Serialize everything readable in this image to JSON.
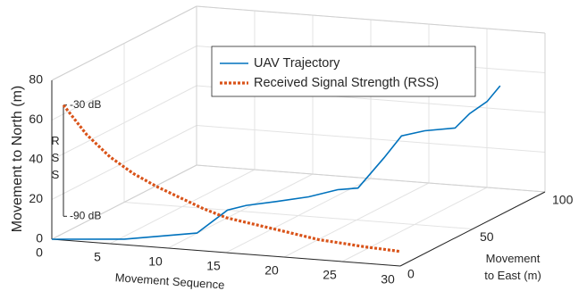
{
  "chart_data": {
    "type": "line3d",
    "xlabel": "Movement Sequence",
    "ylabel": [
      "Movement",
      "to East (m)"
    ],
    "zlabel": "Movement to North (m)",
    "xlim": [
      0,
      30
    ],
    "ylim": [
      0,
      100
    ],
    "zlim": [
      0,
      80
    ],
    "xticks": [
      0,
      5,
      10,
      15,
      20,
      25,
      30
    ],
    "yticks": [
      0,
      50,
      100
    ],
    "zticks": [
      0,
      20,
      40,
      60,
      80
    ],
    "grid": true,
    "legend_location": "north",
    "series": [
      {
        "name": "UAV Trajectory",
        "color": "#0072bd",
        "style": "solid",
        "x": [
          0,
          6,
          12,
          15,
          16,
          18,
          20,
          22,
          23,
          24,
          25,
          26,
          27,
          28,
          29,
          30
        ],
        "y": [
          0,
          2,
          4,
          1,
          6,
          11,
          17,
          21,
          27,
          37,
          41,
          49,
          62,
          64,
          68,
          69
        ],
        "z": [
          0,
          2,
          7,
          21,
          22,
          23,
          24,
          27,
          26,
          38,
          48,
          48,
          45,
          52,
          57,
          65
        ]
      },
      {
        "name": "Received Signal Strength (RSS)",
        "color": "#d95319",
        "style": "dotted",
        "axis": "rss",
        "x": [
          1,
          3,
          5,
          7,
          9,
          11,
          13,
          15,
          17,
          19,
          21,
          23,
          25,
          27,
          30
        ],
        "values": [
          -30,
          -45,
          -56,
          -64,
          -70,
          -75,
          -80,
          -84,
          -86,
          -88,
          -90,
          -92,
          -93,
          -94,
          -95
        ]
      }
    ],
    "rss_axis": {
      "label": "RSS",
      "lim": [
        -90,
        -30
      ],
      "ticks": [
        {
          "value": -90,
          "label": "-90 dB"
        },
        {
          "value": -30,
          "label": "-30 dB"
        }
      ]
    }
  }
}
